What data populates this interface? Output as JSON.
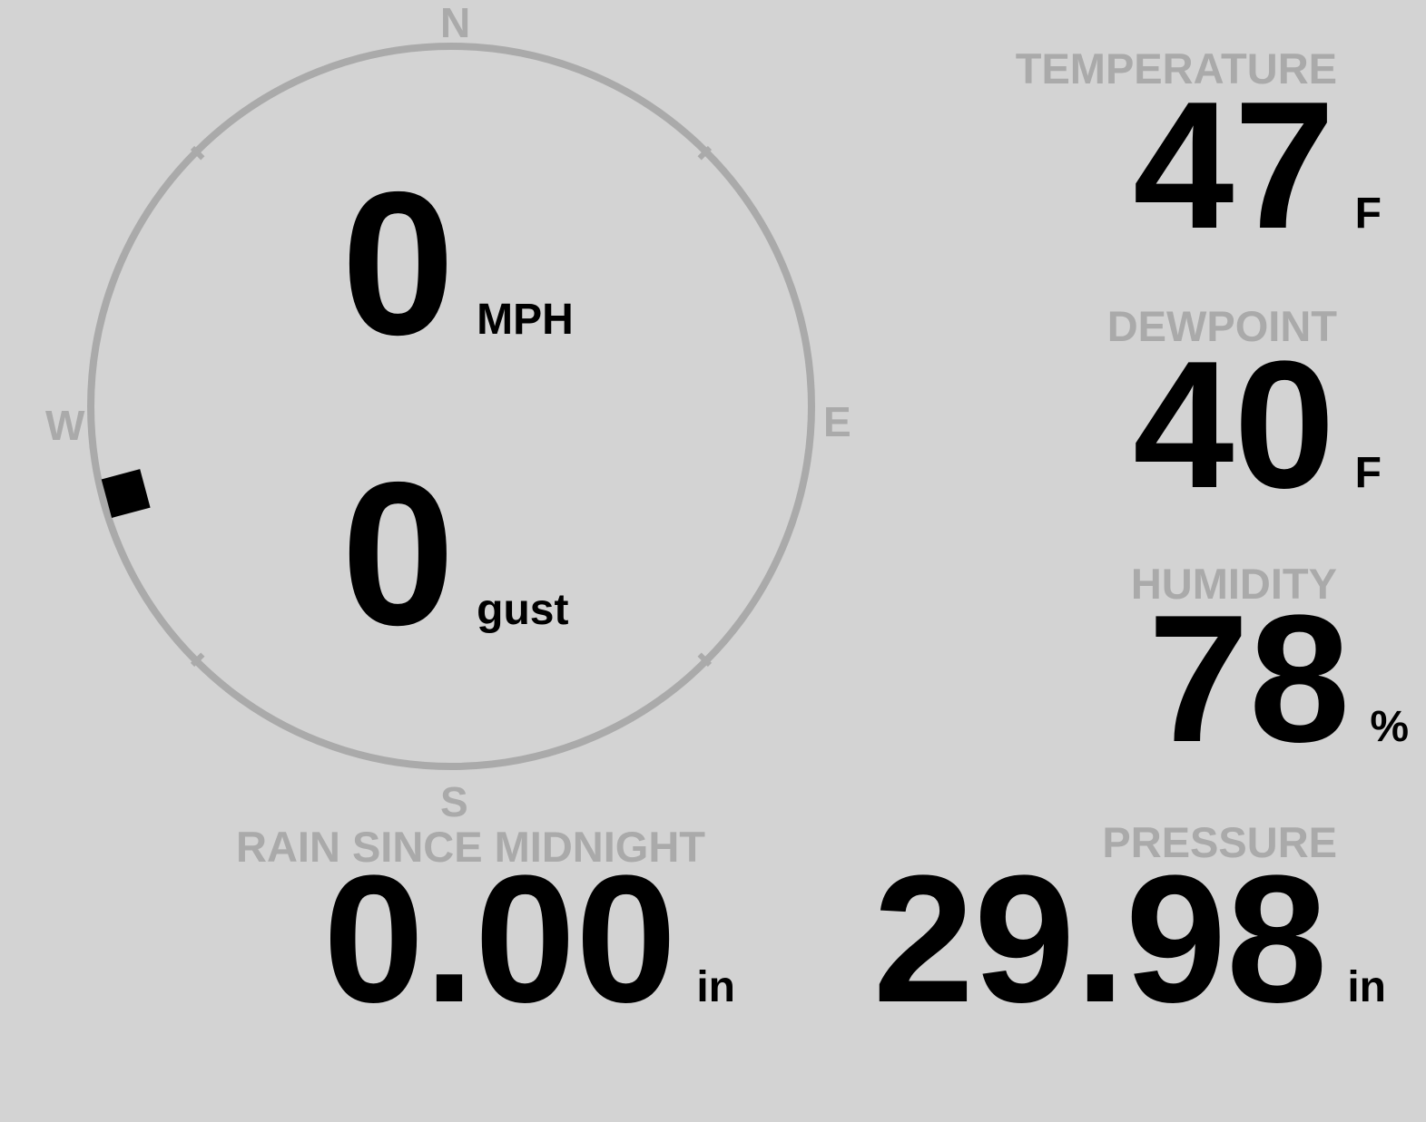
{
  "colors": {
    "background": "#d3d3d3",
    "label": "#aaaaaa",
    "value": "#000000"
  },
  "compass": {
    "north": "N",
    "east": "E",
    "south": "S",
    "west": "W",
    "wind_direction_deg": 255
  },
  "wind": {
    "speed": "0",
    "speed_unit": "MPH",
    "gust": "0",
    "gust_unit": "gust"
  },
  "temperature": {
    "label": "TEMPERATURE",
    "value": "47",
    "unit": "F"
  },
  "dewpoint": {
    "label": "DEWPOINT",
    "value": "40",
    "unit": "F"
  },
  "humidity": {
    "label": "HUMIDITY",
    "value": "78",
    "unit": "%"
  },
  "rain": {
    "label": "RAIN SINCE MIDNIGHT",
    "value": "0.00",
    "unit": "in"
  },
  "pressure": {
    "label": "PRESSURE",
    "value": "29.98",
    "unit": "in"
  }
}
